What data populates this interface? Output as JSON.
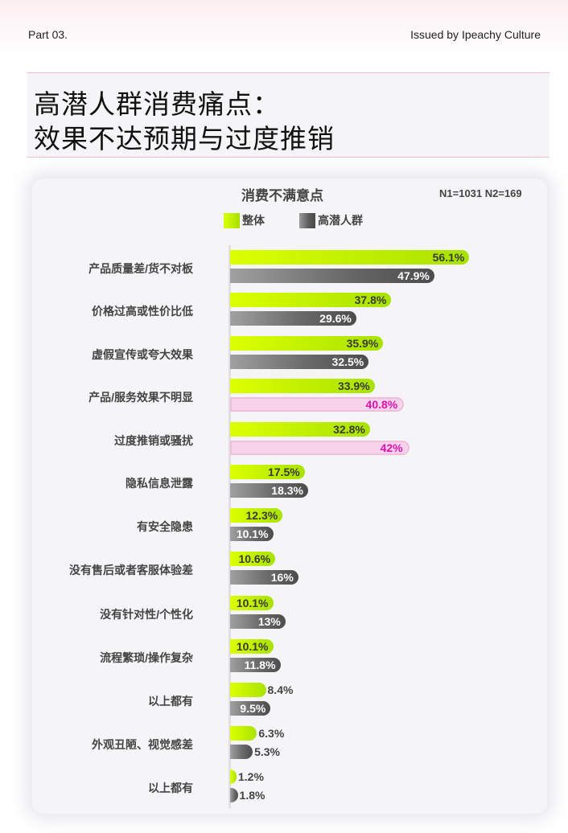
{
  "header": {
    "part": "Part 03.",
    "issuer": "Issued by Ipeachy Culture"
  },
  "title": {
    "line1": "高潜人群消费痛点：",
    "line2": "效果不达预期与过度推销"
  },
  "chart_data": {
    "type": "bar",
    "orientation": "horizontal",
    "title": "消费不满意点",
    "sample_note": "N1=1031  N2=169",
    "legend": [
      "整体",
      "高潜人群"
    ],
    "categories": [
      "产品质量差/货不对板",
      "价格过高或性价比低",
      "虚假宣传或夸大效果",
      "产品/服务效果不明显",
      "过度推销或骚扰",
      "隐私信息泄露",
      "有安全隐患",
      "没有售后或者客服体验差",
      "没有针对性/个性化",
      "流程繁琐/操作复杂",
      "以上都有",
      "外观丑陋、视觉感差",
      "以上都有"
    ],
    "series": [
      {
        "name": "整体",
        "color": "#c6f000",
        "values": [
          56.1,
          37.8,
          35.9,
          33.9,
          32.8,
          17.5,
          12.3,
          10.6,
          10.1,
          10.1,
          8.4,
          6.3,
          1.2
        ],
        "labels": [
          "56.1%",
          "37.8%",
          "35.9%",
          "33.9%",
          "32.8%",
          "17.5%",
          "12.3%",
          "10.6%",
          "10.1%",
          "10.1%",
          "8.4%",
          "6.3%",
          "1.2%"
        ]
      },
      {
        "name": "高潜人群",
        "color": "#5a5a5a",
        "highlight_color": "#f7d4ec",
        "values": [
          47.9,
          29.6,
          32.5,
          40.8,
          42,
          18.3,
          10.1,
          16,
          13,
          11.8,
          9.5,
          5.3,
          1.8
        ],
        "labels": [
          "47.9%",
          "29.6%",
          "32.5%",
          "40.8%",
          "42%",
          "18.3%",
          "10.1%",
          "16%",
          "13%",
          "11.8%",
          "9.5%",
          "5.3%",
          "1.8%"
        ],
        "highlighted_indices": [
          3,
          4
        ]
      }
    ],
    "xlim": [
      0,
      60
    ],
    "grid": false,
    "legend_position": "top-left"
  }
}
